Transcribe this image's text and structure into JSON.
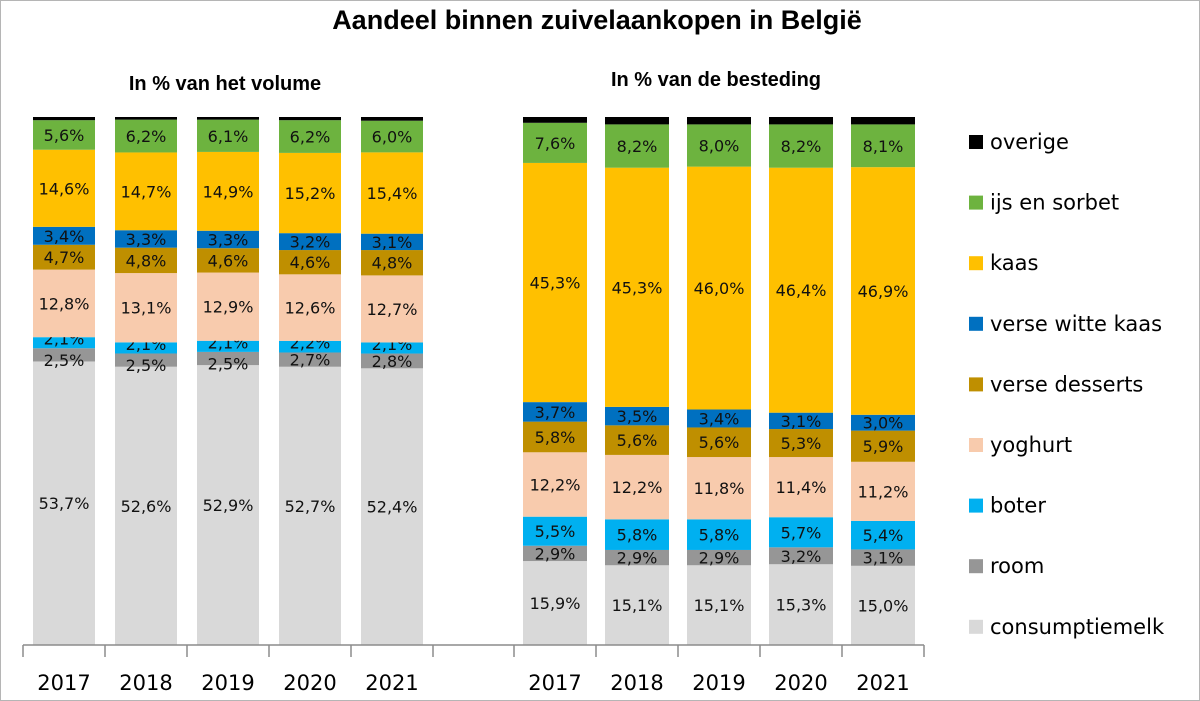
{
  "title": "Aandeel binnen zuivelaankopen in België",
  "chart_data": {
    "type": "bar",
    "stacked": true,
    "title": "Aandeel binnen zuivelaankopen in België",
    "legend_position": "right",
    "legend": [
      {
        "name": "overige",
        "color": "#000000"
      },
      {
        "name": "ijs en sorbet",
        "color": "#6DB33F"
      },
      {
        "name": "kaas",
        "color": "#FFC000"
      },
      {
        "name": "verse witte kaas",
        "color": "#0070C0"
      },
      {
        "name": "verse desserts",
        "color": "#BF8F00"
      },
      {
        "name": "yoghurt",
        "color": "#F8CBAD"
      },
      {
        "name": "boter",
        "color": "#00B0F0"
      },
      {
        "name": "room",
        "color": "#969696"
      },
      {
        "name": "consumptiemelk",
        "color": "#D9D9D9"
      }
    ],
    "panels": [
      {
        "subtitle": "In % van het volume",
        "categories": [
          "2017",
          "2018",
          "2019",
          "2020",
          "2021"
        ],
        "ylim": [
          0,
          100
        ],
        "series": [
          {
            "name": "consumptiemelk",
            "values": [
              53.7,
              52.6,
              52.9,
              52.7,
              52.4
            ],
            "labels": [
              "53,7%",
              "52,6%",
              "52,9%",
              "52,7%",
              "52,4%"
            ]
          },
          {
            "name": "room",
            "values": [
              2.5,
              2.5,
              2.5,
              2.7,
              2.8
            ],
            "labels": [
              "2,5%",
              "2,5%",
              "2,5%",
              "2,7%",
              "2,8%"
            ]
          },
          {
            "name": "boter",
            "values": [
              2.1,
              2.1,
              2.1,
              2.2,
              2.1
            ],
            "labels": [
              "2,1%",
              "2,1%",
              "2,1%",
              "2,2%",
              "2,1%"
            ]
          },
          {
            "name": "yoghurt",
            "values": [
              12.8,
              13.1,
              12.9,
              12.6,
              12.7
            ],
            "labels": [
              "12,8%",
              "13,1%",
              "12,9%",
              "12,6%",
              "12,7%"
            ]
          },
          {
            "name": "verse desserts",
            "values": [
              4.7,
              4.8,
              4.6,
              4.6,
              4.8
            ],
            "labels": [
              "4,7%",
              "4,8%",
              "4,6%",
              "4,6%",
              "4,8%"
            ]
          },
          {
            "name": "verse witte kaas",
            "values": [
              3.4,
              3.3,
              3.3,
              3.2,
              3.1
            ],
            "labels": [
              "3,4%",
              "3,3%",
              "3,3%",
              "3,2%",
              "3,1%"
            ]
          },
          {
            "name": "kaas",
            "values": [
              14.6,
              14.7,
              14.9,
              15.2,
              15.4
            ],
            "labels": [
              "14,6%",
              "14,7%",
              "14,9%",
              "15,2%",
              "15,4%"
            ]
          },
          {
            "name": "ijs en sorbet",
            "values": [
              5.6,
              6.2,
              6.1,
              6.2,
              6.0
            ],
            "labels": [
              "5,6%",
              "6,2%",
              "6,1%",
              "6,2%",
              "6,0%"
            ]
          },
          {
            "name": "overige",
            "values": [
              0.6,
              0.5,
              0.5,
              0.6,
              0.7
            ],
            "labels": null
          }
        ]
      },
      {
        "subtitle": "In % van de besteding",
        "categories": [
          "2017",
          "2018",
          "2019",
          "2020",
          "2021"
        ],
        "ylim": [
          0,
          100
        ],
        "series": [
          {
            "name": "consumptiemelk",
            "values": [
              15.9,
              15.1,
              15.1,
              15.3,
              15.0
            ],
            "labels": [
              "15,9%",
              "15,1%",
              "15,1%",
              "15,3%",
              "15,0%"
            ]
          },
          {
            "name": "room",
            "values": [
              2.9,
              2.9,
              2.9,
              3.2,
              3.1
            ],
            "labels": [
              "2,9%",
              "2,9%",
              "2,9%",
              "3,2%",
              "3,1%"
            ]
          },
          {
            "name": "boter",
            "values": [
              5.5,
              5.8,
              5.8,
              5.7,
              5.4
            ],
            "labels": [
              "5,5%",
              "5,8%",
              "5,8%",
              "5,7%",
              "5,4%"
            ]
          },
          {
            "name": "yoghurt",
            "values": [
              12.2,
              12.2,
              11.8,
              11.4,
              11.2
            ],
            "labels": [
              "12,2%",
              "12,2%",
              "11,8%",
              "11,4%",
              "11,2%"
            ]
          },
          {
            "name": "verse desserts",
            "values": [
              5.8,
              5.6,
              5.6,
              5.3,
              5.9
            ],
            "labels": [
              "5,8%",
              "5,6%",
              "5,6%",
              "5,3%",
              "5,9%"
            ]
          },
          {
            "name": "verse witte kaas",
            "values": [
              3.7,
              3.5,
              3.4,
              3.1,
              3.0
            ],
            "labels": [
              "3,7%",
              "3,5%",
              "3,4%",
              "3,1%",
              "3,0%"
            ]
          },
          {
            "name": "kaas",
            "values": [
              45.3,
              45.3,
              46.0,
              46.4,
              46.9
            ],
            "labels": [
              "45,3%",
              "45,3%",
              "46,0%",
              "46,4%",
              "46,9%"
            ]
          },
          {
            "name": "ijs en sorbet",
            "values": [
              7.6,
              8.2,
              8.0,
              8.2,
              8.1
            ],
            "labels": [
              "7,6%",
              "8,2%",
              "8,0%",
              "8,2%",
              "8,1%"
            ]
          },
          {
            "name": "overige",
            "values": [
              1.1,
              1.4,
              1.4,
              1.4,
              1.4
            ],
            "labels": null
          }
        ]
      }
    ]
  }
}
